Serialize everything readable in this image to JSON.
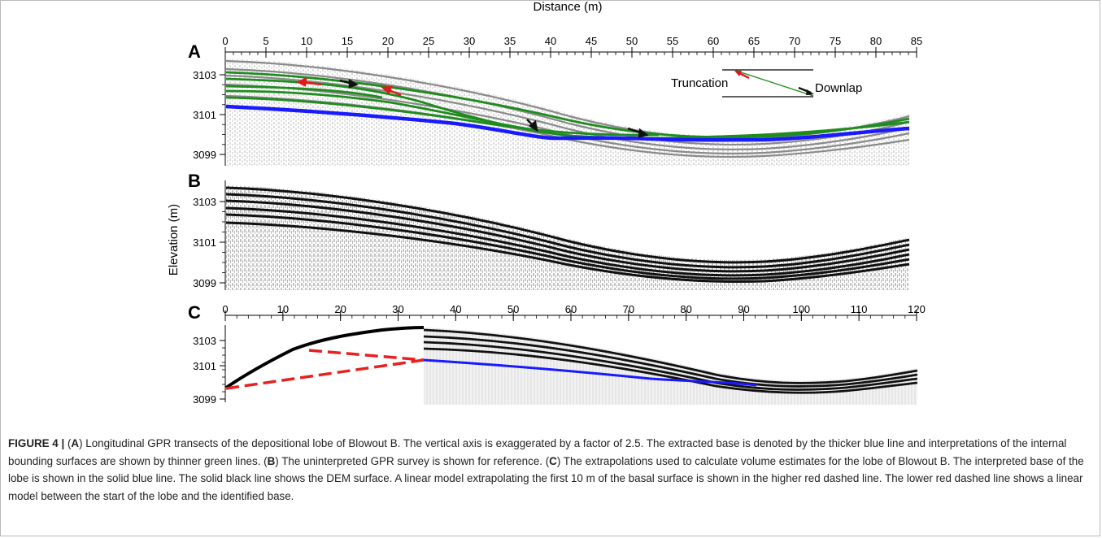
{
  "figure": {
    "x_axis_title": "Distance (m)",
    "y_axis_title": "Elevation (m)",
    "panels": [
      {
        "letter": "A",
        "x_ticks": [
          0,
          5,
          10,
          15,
          20,
          25,
          30,
          35,
          40,
          45,
          50,
          55,
          60,
          65,
          70,
          75,
          80,
          85
        ],
        "y_ticks": [
          3103,
          3101,
          3099
        ]
      },
      {
        "letter": "B",
        "x_ticks": [],
        "y_ticks": [
          3103,
          3101,
          3099
        ]
      },
      {
        "letter": "C",
        "x_ticks": [
          0,
          10,
          20,
          30,
          40,
          50,
          60,
          70,
          80,
          90,
          100,
          110,
          120
        ],
        "y_ticks": [
          3103,
          3101,
          3099
        ]
      }
    ],
    "legend": {
      "truncation": "Truncation",
      "downlap": "Downlap"
    },
    "colors": {
      "base": "#1a1aff",
      "internal": "#1e8c1e",
      "arrow_truncation": "#e01a1a",
      "arrow_downlap": "#111111",
      "extrapolation": "#e82020",
      "dem": "#000000"
    }
  },
  "caption": {
    "label": "FIGURE 4 |",
    "parts": [
      {
        "bold": false,
        "text": " ("
      },
      {
        "bold": true,
        "text": "A"
      },
      {
        "bold": false,
        "text": ") Longitudinal GPR transects of the depositional lobe of Blowout B. The vertical axis is exaggerated by a factor of 2.5. The extracted base is denoted by the thicker blue line and interpretations of the internal bounding surfaces are shown by thinner green lines. ("
      },
      {
        "bold": true,
        "text": "B"
      },
      {
        "bold": false,
        "text": ") The uninterpreted GPR survey is shown for reference. ("
      },
      {
        "bold": true,
        "text": "C"
      },
      {
        "bold": false,
        "text": ") The extrapolations used to calculate volume estimates for the lobe of Blowout B. The interpreted base of the lobe is shown in the solid blue line. The solid black line shows the DEM surface. A linear model extrapolating the first 10 m of the basal surface is shown in the higher red dashed line. The lower red dashed line shows a linear model between the start of the lobe and the identified base."
      }
    ]
  }
}
